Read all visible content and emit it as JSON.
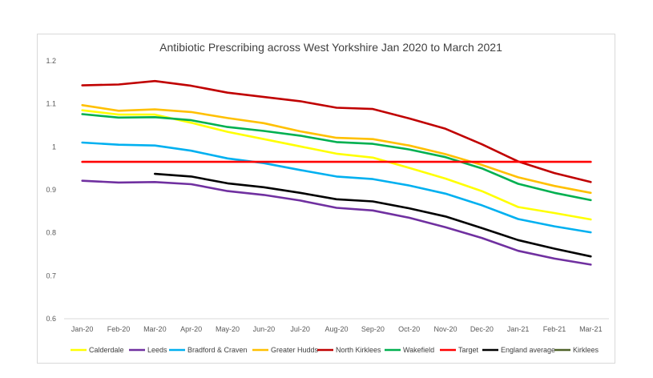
{
  "chart_data": {
    "type": "line",
    "title": "Antibiotic Prescribing across West Yorkshire Jan 2020 to March 2021",
    "xlabel": "",
    "ylabel": "",
    "ylim": [
      0.6,
      1.2
    ],
    "yticks": [
      "0.6",
      "0.7",
      "0.8",
      "0.9",
      "1",
      "1.1",
      "1.2"
    ],
    "grid": false,
    "legend_position": "bottom",
    "categories": [
      "Jan-20",
      "Feb-20",
      "Mar-20",
      "Apr-20",
      "May-20",
      "Jun-20",
      "Jul-20",
      "Aug-20",
      "Sep-20",
      "Oct-20",
      "Nov-20",
      "Dec-20",
      "Jan-21",
      "Feb-21",
      "Mar-21"
    ],
    "series": [
      {
        "name": "Calderdale",
        "color": "#ffff00",
        "values": [
          1.085,
          1.075,
          1.075,
          1.056,
          1.035,
          1.018,
          1.001,
          0.984,
          0.975,
          0.951,
          0.926,
          0.897,
          0.86,
          0.846,
          0.831
        ]
      },
      {
        "name": "Leeds",
        "color": "#7030a0",
        "values": [
          0.921,
          0.917,
          0.918,
          0.913,
          0.897,
          0.888,
          0.875,
          0.858,
          0.852,
          0.835,
          0.813,
          0.788,
          0.758,
          0.74,
          0.726
        ]
      },
      {
        "name": "Bradford & Craven",
        "color": "#00b0f0",
        "values": [
          1.01,
          1.005,
          1.003,
          0.991,
          0.973,
          0.962,
          0.946,
          0.931,
          0.925,
          0.91,
          0.891,
          0.864,
          0.832,
          0.815,
          0.801
        ]
      },
      {
        "name": "Greater Hudds",
        "color": "#ffc000",
        "values": [
          1.097,
          1.084,
          1.087,
          1.081,
          1.067,
          1.055,
          1.036,
          1.021,
          1.018,
          1.003,
          0.983,
          0.958,
          0.929,
          0.909,
          0.893
        ]
      },
      {
        "name": "North Kirklees",
        "color": "#c00000",
        "values": [
          1.143,
          1.145,
          1.153,
          1.142,
          1.126,
          1.116,
          1.106,
          1.091,
          1.088,
          1.066,
          1.042,
          1.006,
          0.966,
          0.939,
          0.918
        ]
      },
      {
        "name": "Wakefield",
        "color": "#00b050",
        "values": [
          1.076,
          1.068,
          1.069,
          1.062,
          1.046,
          1.037,
          1.026,
          1.011,
          1.007,
          0.994,
          0.976,
          0.95,
          0.914,
          0.893,
          0.876
        ]
      },
      {
        "name": "Target",
        "color": "#ff0000",
        "values": [
          0.965,
          0.965,
          0.965,
          0.965,
          0.965,
          0.965,
          0.965,
          0.965,
          0.965,
          0.965,
          0.965,
          0.965,
          0.965,
          0.965,
          0.965
        ]
      },
      {
        "name": "England average",
        "color": "#000000",
        "values": [
          null,
          null,
          0.937,
          0.931,
          0.915,
          0.906,
          0.893,
          0.878,
          0.873,
          0.857,
          0.838,
          0.811,
          0.783,
          0.763,
          0.745
        ]
      },
      {
        "name": "Kirklees",
        "color": "#4f6228",
        "values": [
          null,
          null,
          null,
          null,
          null,
          null,
          null,
          null,
          null,
          null,
          null,
          null,
          null,
          null,
          null
        ]
      }
    ]
  }
}
